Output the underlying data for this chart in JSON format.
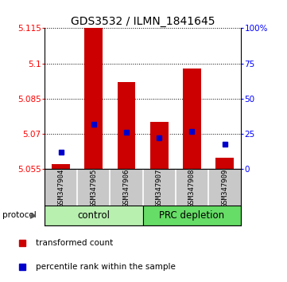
{
  "title": "GDS3532 / ILMN_1841645",
  "samples": [
    "GSM347904",
    "GSM347905",
    "GSM347906",
    "GSM347907",
    "GSM347908",
    "GSM347909"
  ],
  "transformed_counts": [
    5.057,
    5.115,
    5.092,
    5.075,
    5.098,
    5.06
  ],
  "percentile_ranks": [
    12,
    32,
    26,
    22,
    27,
    18
  ],
  "ymin": 5.055,
  "ymax": 5.115,
  "yticks": [
    5.055,
    5.07,
    5.085,
    5.1,
    5.115
  ],
  "right_yticks": [
    0,
    25,
    50,
    75,
    100
  ],
  "bar_color": "#cc0000",
  "dot_color": "#0000cc",
  "bar_width": 0.55,
  "legend_red": "transformed count",
  "legend_blue": "percentile rank within the sample",
  "title_fontsize": 10,
  "tick_fontsize": 7.5,
  "group_label_fontsize": 8.5,
  "sample_fontsize": 6.5,
  "legend_fontsize": 7.5,
  "control_color": "#b8f0b0",
  "prc_color": "#66dd66",
  "sample_bg_color": "#c8c8c8"
}
